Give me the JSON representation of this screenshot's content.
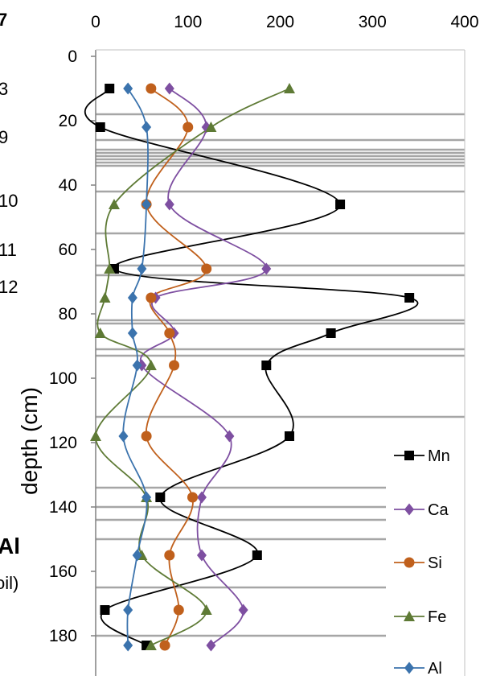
{
  "chart_data": {
    "type": "scatter",
    "ylabel": "depth (cm)",
    "xlim": [
      0,
      400
    ],
    "ylim": [
      0,
      180
    ],
    "y_inverted": true,
    "x_ticks": [
      "0",
      "100",
      "200",
      "300",
      "400"
    ],
    "y_ticks": [
      "0",
      "20",
      "40",
      "60",
      "80",
      "100",
      "120",
      "140",
      "160",
      "180"
    ],
    "grid": false,
    "horizons_full": [
      18,
      26,
      29,
      30,
      31,
      32,
      33,
      34,
      42,
      55,
      65,
      68,
      82,
      83,
      91,
      93,
      112
    ],
    "horizons_partial": [
      134,
      140,
      144,
      150,
      165,
      180
    ],
    "legend_position": "right",
    "series": [
      {
        "name": "Mn",
        "color": "#000000",
        "marker": "square",
        "x": [
          15,
          5,
          265,
          20,
          340,
          255,
          185,
          210,
          70,
          175,
          10,
          55
        ],
        "y": [
          10,
          22,
          46,
          66,
          75,
          86,
          96,
          118,
          137,
          155,
          172,
          183
        ]
      },
      {
        "name": "Ca",
        "color": "#7e4fa1",
        "marker": "diamond",
        "x": [
          80,
          120,
          80,
          185,
          65,
          85,
          50,
          145,
          115,
          115,
          160,
          125
        ],
        "y": [
          10,
          22,
          46,
          66,
          75,
          86,
          96,
          118,
          137,
          155,
          172,
          183
        ]
      },
      {
        "name": "Si",
        "color": "#c0601c",
        "marker": "circle",
        "x": [
          60,
          100,
          55,
          120,
          60,
          80,
          85,
          55,
          105,
          80,
          90,
          75
        ],
        "y": [
          10,
          22,
          46,
          66,
          75,
          86,
          96,
          118,
          137,
          155,
          172,
          183
        ]
      },
      {
        "name": "Fe",
        "color": "#5e7a35",
        "marker": "triangle",
        "x": [
          210,
          125,
          20,
          15,
          10,
          5,
          60,
          0,
          55,
          50,
          120,
          60
        ],
        "y": [
          10,
          22,
          46,
          66,
          75,
          86,
          96,
          118,
          137,
          155,
          172,
          183
        ]
      },
      {
        "name": "Al",
        "color": "#3b73ad",
        "marker": "diamond",
        "x": [
          35,
          55,
          55,
          50,
          40,
          40,
          45,
          30,
          55,
          45,
          35,
          35
        ],
        "y": [
          10,
          22,
          46,
          66,
          75,
          86,
          96,
          118,
          137,
          155,
          172,
          183
        ]
      }
    ]
  },
  "edge_text": {
    "top_left": "7",
    "row1": "3",
    "row2": "9",
    "row3": "10",
    "row4": "11",
    "row5": "12",
    "al_bold": "Al",
    "paren": "oil)"
  }
}
